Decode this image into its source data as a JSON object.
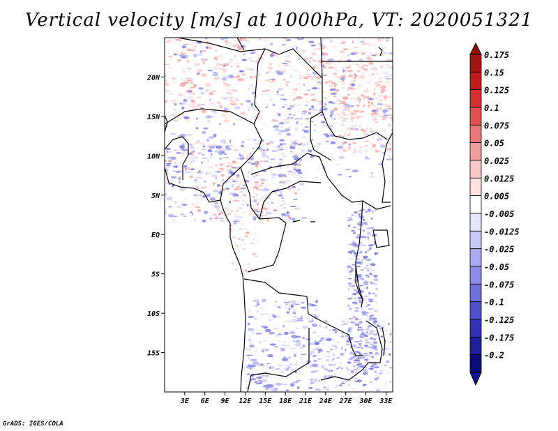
{
  "title": "Vertical velocity [m/s] at 1000hPa, VT: 2020051321",
  "credit": "GrADS: IGES/COLA",
  "map": {
    "lon_range": [
      0,
      34
    ],
    "lat_range": [
      -20,
      25
    ],
    "lat_ticks": [
      {
        "value": 20,
        "label": "20N"
      },
      {
        "value": 15,
        "label": "15N"
      },
      {
        "value": 10,
        "label": "10N"
      },
      {
        "value": 5,
        "label": "5N"
      },
      {
        "value": 0,
        "label": "EQ"
      },
      {
        "value": -5,
        "label": "5S"
      },
      {
        "value": -10,
        "label": "10S"
      },
      {
        "value": -15,
        "label": "15S"
      }
    ],
    "lon_ticks": [
      {
        "value": 3,
        "label": "3E"
      },
      {
        "value": 6,
        "label": "6E"
      },
      {
        "value": 9,
        "label": "9E"
      },
      {
        "value": 12,
        "label": "12E"
      },
      {
        "value": 15,
        "label": "15E"
      },
      {
        "value": 18,
        "label": "18E"
      },
      {
        "value": 21,
        "label": "21E"
      },
      {
        "value": 24,
        "label": "24E"
      },
      {
        "value": 27,
        "label": "27E"
      },
      {
        "value": 30,
        "label": "30E"
      },
      {
        "value": 33,
        "label": "33E"
      }
    ]
  },
  "colorbar": {
    "levels": [
      {
        "label": "0.175",
        "color": "#a01414"
      },
      {
        "label": "0.15",
        "color": "#be1e1e"
      },
      {
        "label": "0.125",
        "color": "#d23232"
      },
      {
        "label": "0.1",
        "color": "#e05050"
      },
      {
        "label": "0.075",
        "color": "#e87878"
      },
      {
        "label": "0.05",
        "color": "#f0a0a0"
      },
      {
        "label": "0.025",
        "color": "#f8c8c8"
      },
      {
        "label": "0.0125",
        "color": "#fde0e0"
      },
      {
        "label": "0.005",
        "color": "#ffffff"
      },
      {
        "label": "-0.005",
        "color": "#e4e4fa"
      },
      {
        "label": "-0.0125",
        "color": "#c8c8f5"
      },
      {
        "label": "-0.025",
        "color": "#aaaaf0"
      },
      {
        "label": "-0.05",
        "color": "#8c8ce6"
      },
      {
        "label": "-0.075",
        "color": "#6e6ed8"
      },
      {
        "label": "-0.1",
        "color": "#5050c8"
      },
      {
        "label": "-0.125",
        "color": "#3232b4"
      },
      {
        "label": "-0.175",
        "color": "#1e1e9b"
      },
      {
        "label": "-0.2",
        "color": "#0a0a78"
      }
    ],
    "top_color": "#8c0a0a",
    "bottom_color": "#14148c"
  }
}
